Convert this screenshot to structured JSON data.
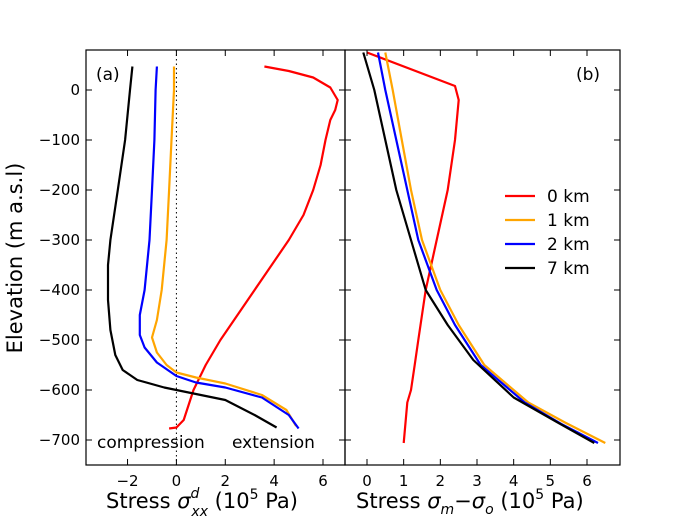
{
  "chart_data": [
    {
      "type": "line",
      "panel_tag": "(a)",
      "ylabel": "Elevation (m a.s.l)",
      "xlabel_prefix": "Stress ",
      "xlabel_symbol": "σ",
      "xlabel_sup": "d",
      "xlabel_sub": "xx",
      "xlabel_units": " (10",
      "xlabel_units_exp": "5",
      "xlabel_units_end": " Pa)",
      "xlim": [
        -3.7,
        6.9
      ],
      "ylim": [
        -750,
        80
      ],
      "xticks": [
        -2,
        0,
        2,
        4,
        6
      ],
      "xtick_labels": [
        "−2",
        "0",
        "2",
        "4",
        "6"
      ],
      "yticks": [
        0,
        -100,
        -200,
        -300,
        -400,
        -500,
        -600,
        -700
      ],
      "ytick_labels": [
        "0",
        "−100",
        "−200",
        "−300",
        "−400",
        "−500",
        "−600",
        "−700"
      ],
      "reference_line_x": 0,
      "annotations": [
        "compression",
        "extension"
      ],
      "series": [
        {
          "name": "0 km",
          "color": "#ff0000",
          "points": [
            [
              3.6,
              47
            ],
            [
              4.6,
              38
            ],
            [
              5.6,
              25
            ],
            [
              6.3,
              5
            ],
            [
              6.6,
              -20
            ],
            [
              6.5,
              -40
            ],
            [
              6.3,
              -60
            ],
            [
              6.1,
              -100
            ],
            [
              5.9,
              -150
            ],
            [
              5.6,
              -200
            ],
            [
              5.2,
              -250
            ],
            [
              4.6,
              -300
            ],
            [
              3.9,
              -350
            ],
            [
              3.2,
              -400
            ],
            [
              2.5,
              -450
            ],
            [
              1.8,
              -500
            ],
            [
              1.2,
              -550
            ],
            [
              0.7,
              -600
            ],
            [
              0.5,
              -630
            ],
            [
              0.3,
              -660
            ],
            [
              0,
              -675
            ],
            [
              -0.3,
              -677
            ]
          ]
        },
        {
          "name": "1 km",
          "color": "#ffa500",
          "points": [
            [
              -0.1,
              47
            ],
            [
              -0.1,
              0
            ],
            [
              -0.2,
              -100
            ],
            [
              -0.3,
              -200
            ],
            [
              -0.4,
              -300
            ],
            [
              -0.6,
              -400
            ],
            [
              -0.8,
              -460
            ],
            [
              -1.0,
              -495
            ],
            [
              -0.8,
              -525
            ],
            [
              -0.4,
              -550
            ],
            [
              0,
              -565
            ],
            [
              0.8,
              -575
            ],
            [
              2,
              -587
            ],
            [
              3.5,
              -610
            ],
            [
              4.5,
              -640
            ],
            [
              4.9,
              -672
            ]
          ]
        },
        {
          "name": "2 km",
          "color": "#0000ff",
          "points": [
            [
              -0.8,
              47
            ],
            [
              -0.85,
              0
            ],
            [
              -0.9,
              -100
            ],
            [
              -1.0,
              -200
            ],
            [
              -1.1,
              -300
            ],
            [
              -1.3,
              -400
            ],
            [
              -1.5,
              -450
            ],
            [
              -1.5,
              -490
            ],
            [
              -1.3,
              -515
            ],
            [
              -0.8,
              -545
            ],
            [
              0,
              -572
            ],
            [
              0.8,
              -585
            ],
            [
              2,
              -595
            ],
            [
              3.5,
              -615
            ],
            [
              4.6,
              -650
            ],
            [
              5.0,
              -677
            ]
          ]
        },
        {
          "name": "7 km",
          "color": "#000000",
          "points": [
            [
              -1.8,
              47
            ],
            [
              -1.9,
              0
            ],
            [
              -2.1,
              -100
            ],
            [
              -2.4,
              -200
            ],
            [
              -2.7,
              -300
            ],
            [
              -2.8,
              -350
            ],
            [
              -2.8,
              -420
            ],
            [
              -2.7,
              -480
            ],
            [
              -2.5,
              -530
            ],
            [
              -2.2,
              -560
            ],
            [
              -1.6,
              -580
            ],
            [
              -0.5,
              -595
            ],
            [
              0.5,
              -605
            ],
            [
              2,
              -620
            ],
            [
              3.2,
              -650
            ],
            [
              4.1,
              -675
            ]
          ]
        }
      ]
    },
    {
      "type": "line",
      "panel_tag": "(b)",
      "xlabel_prefix": "Stress ",
      "xlabel_symbol": "σ",
      "xlabel_sub": "m",
      "xlabel_minus": "−",
      "xlabel_symbol2": "σ",
      "xlabel_sub2": "o",
      "xlabel_units": " (10",
      "xlabel_units_exp": "5",
      "xlabel_units_end": " Pa)",
      "xlim": [
        -0.6,
        6.9
      ],
      "ylim": [
        -750,
        80
      ],
      "xticks": [
        0,
        1,
        2,
        3,
        4,
        5,
        6
      ],
      "xtick_labels": [
        "0",
        "1",
        "2",
        "3",
        "4",
        "5",
        "6"
      ],
      "legend_position": "center-right",
      "series": [
        {
          "name": "0 km",
          "color": "#ff0000",
          "points": [
            [
              0,
              75
            ],
            [
              2.4,
              8
            ],
            [
              2.5,
              -20
            ],
            [
              2.4,
              -100
            ],
            [
              2.2,
              -200
            ],
            [
              1.9,
              -300
            ],
            [
              1.6,
              -400
            ],
            [
              1.4,
              -500
            ],
            [
              1.3,
              -550
            ],
            [
              1.2,
              -600
            ],
            [
              1.1,
              -625
            ],
            [
              1.0,
              -706
            ]
          ]
        },
        {
          "name": "1 km",
          "color": "#ffa500",
          "points": [
            [
              0.5,
              75
            ],
            [
              0.7,
              0
            ],
            [
              0.95,
              -100
            ],
            [
              1.2,
              -200
            ],
            [
              1.5,
              -300
            ],
            [
              2.0,
              -400
            ],
            [
              2.5,
              -470
            ],
            [
              3.2,
              -550
            ],
            [
              4.4,
              -625
            ],
            [
              5.4,
              -665
            ],
            [
              6.5,
              -706
            ]
          ]
        },
        {
          "name": "2 km",
          "color": "#0000ff",
          "points": [
            [
              0.3,
              75
            ],
            [
              0.5,
              0
            ],
            [
              0.8,
              -100
            ],
            [
              1.1,
              -200
            ],
            [
              1.4,
              -300
            ],
            [
              1.9,
              -400
            ],
            [
              2.4,
              -470
            ],
            [
              3.1,
              -550
            ],
            [
              4.3,
              -625
            ],
            [
              5.3,
              -668
            ],
            [
              6.3,
              -706
            ]
          ]
        },
        {
          "name": "7 km",
          "color": "#000000",
          "points": [
            [
              -0.1,
              75
            ],
            [
              0.2,
              0
            ],
            [
              0.5,
              -100
            ],
            [
              0.8,
              -200
            ],
            [
              1.2,
              -300
            ],
            [
              1.6,
              -400
            ],
            [
              2.2,
              -470
            ],
            [
              2.9,
              -540
            ],
            [
              4.0,
              -615
            ],
            [
              5.2,
              -665
            ],
            [
              6.2,
              -706
            ]
          ]
        }
      ]
    }
  ]
}
